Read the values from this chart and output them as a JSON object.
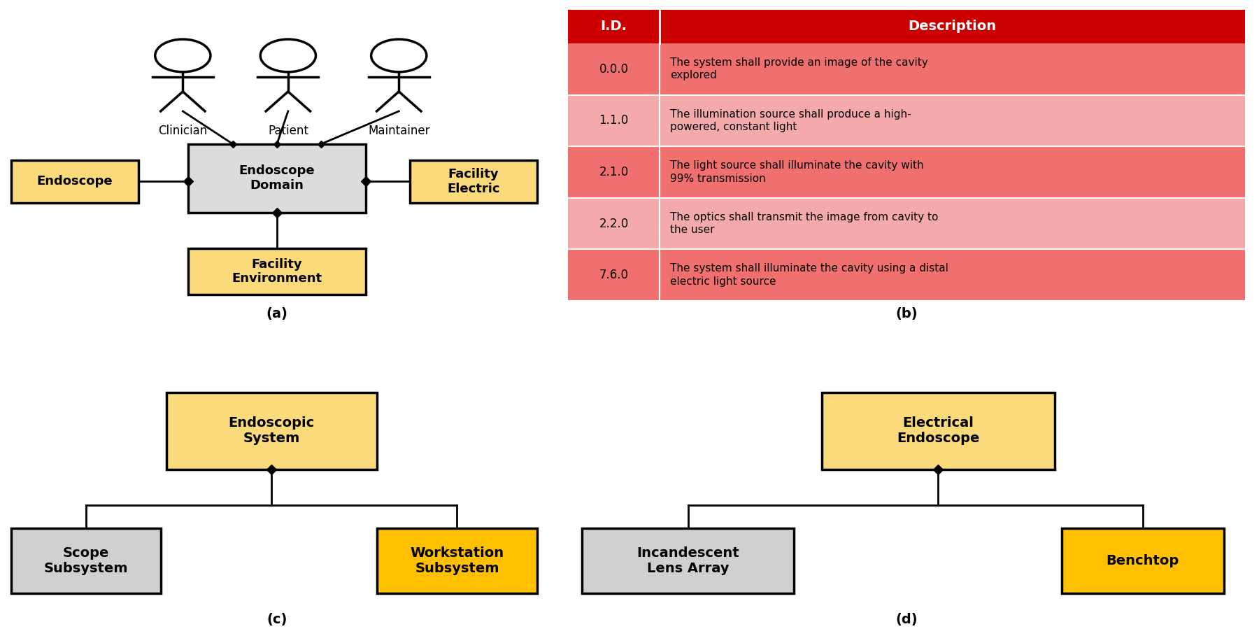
{
  "bg_color": "#ffffff",
  "yellow_light": "#FADA7A",
  "yellow_dark": "#FFC000",
  "gray_box": "#D0D0D0",
  "gray_domain": "#DCDCDC",
  "red_header": "#CC0000",
  "red_dark": "#F07070",
  "red_light": "#F4AAAA",
  "table_ids": [
    "0.0.0",
    "1.1.0",
    "2.1.0",
    "2.2.0",
    "7.6.0"
  ],
  "table_descs": [
    "The system shall provide an image of the cavity\nexplored",
    "The illumination source shall produce a high-\npowered, constant light",
    "The light source shall illuminate the cavity with\n99% transmission",
    "The optics shall transmit the image from cavity to\nthe user",
    "The system shall illuminate the cavity using a distal\nelectric light source"
  ],
  "row_colors": [
    "#F07070",
    "#F4AAAA",
    "#F07070",
    "#F4AAAA",
    "#F07070"
  ]
}
